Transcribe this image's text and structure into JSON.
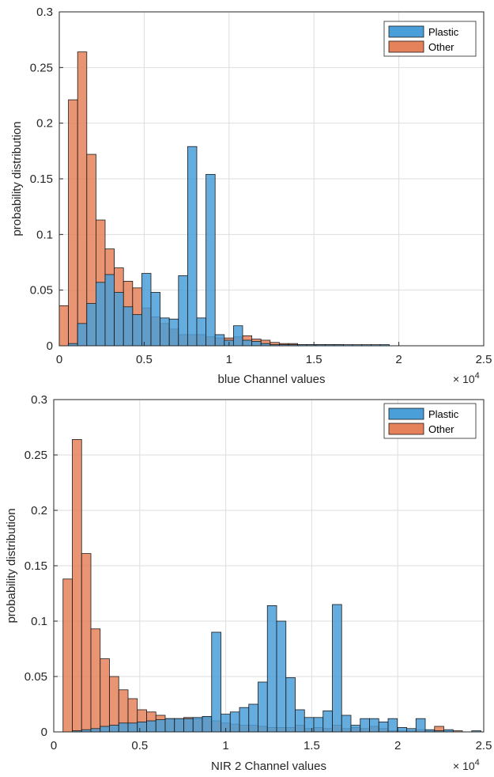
{
  "chart_data": [
    {
      "type": "bar",
      "xlabel": "blue Channel values",
      "ylabel": "probability distribution",
      "xlim": [
        0,
        25000
      ],
      "ylim": [
        0,
        0.3
      ],
      "xticks": [
        0,
        5000,
        10000,
        15000,
        20000,
        25000
      ],
      "xtick_labels": [
        "0",
        "0.5",
        "1",
        "1.5",
        "2",
        "2.5"
      ],
      "yticks": [
        0,
        0.05,
        0.1,
        0.15,
        0.2,
        0.25,
        0.3
      ],
      "ytick_labels": [
        "0",
        "0.05",
        "0.1",
        "0.15",
        "0.2",
        "0.25",
        "0.3"
      ],
      "x_exponent": "× 10^4",
      "grid": true,
      "legend_position": "top-right",
      "bin_width": 540,
      "bin_start": 0,
      "series": [
        {
          "name": "Plastic",
          "color": "#4a9fd8",
          "values": [
            0,
            0.002,
            0.02,
            0.038,
            0.057,
            0.064,
            0.048,
            0.035,
            0.028,
            0.065,
            0.048,
            0.025,
            0.024,
            0.063,
            0.179,
            0.025,
            0.154,
            0.01,
            0.005,
            0.018,
            0.005,
            0.004,
            0.002,
            0.001,
            0.001,
            0.001,
            0.001,
            0.001,
            0.001,
            0.001,
            0.001,
            0.001,
            0.001,
            0.001,
            0.001,
            0.001,
            0,
            0,
            0,
            0,
            0,
            0,
            0,
            0,
            0,
            0
          ]
        },
        {
          "name": "Other",
          "color": "#e5825b",
          "values": [
            0.036,
            0.221,
            0.264,
            0.172,
            0.113,
            0.087,
            0.07,
            0.058,
            0.052,
            0.034,
            0.026,
            0.02,
            0.015,
            0.01,
            0.01,
            0.01,
            0.008,
            0.007,
            0.007,
            0.008,
            0.009,
            0.006,
            0.005,
            0.003,
            0.002,
            0.002,
            0.001,
            0.001,
            0.001,
            0.001,
            0.001,
            0,
            0,
            0,
            0,
            0,
            0,
            0,
            0,
            0,
            0,
            0,
            0,
            0,
            0,
            0
          ]
        }
      ]
    },
    {
      "type": "bar",
      "xlabel": "NIR 2 Channel values",
      "ylabel": "probability distribution",
      "xlim": [
        0,
        25000
      ],
      "ylim": [
        0,
        0.3
      ],
      "xticks": [
        0,
        5000,
        10000,
        15000,
        20000,
        25000
      ],
      "xtick_labels": [
        "0",
        "0.5",
        "1",
        "1.5",
        "2",
        "2.5"
      ],
      "yticks": [
        0,
        0.05,
        0.1,
        0.15,
        0.2,
        0.25,
        0.3
      ],
      "ytick_labels": [
        "0",
        "0.05",
        "0.1",
        "0.15",
        "0.2",
        "0.25",
        "0.3"
      ],
      "x_exponent": "× 10^4",
      "grid": true,
      "legend_position": "top-right",
      "bin_width": 540,
      "bin_start": 540,
      "series": [
        {
          "name": "Plastic",
          "color": "#4a9fd8",
          "values": [
            0.0,
            0.001,
            0.002,
            0.003,
            0.005,
            0.006,
            0.008,
            0.008,
            0.009,
            0.01,
            0.011,
            0.012,
            0.012,
            0.012,
            0.013,
            0.014,
            0.09,
            0.016,
            0.018,
            0.022,
            0.025,
            0.045,
            0.114,
            0.1,
            0.049,
            0.02,
            0.013,
            0.013,
            0.019,
            0.115,
            0.015,
            0.006,
            0.012,
            0.012,
            0.009,
            0.012,
            0.004,
            0.003,
            0.012,
            0.002,
            0.001,
            0.002,
            0.0,
            0.0,
            0.001
          ]
        },
        {
          "name": "Other",
          "color": "#e5825b",
          "values": [
            0.138,
            0.264,
            0.161,
            0.093,
            0.066,
            0.05,
            0.038,
            0.03,
            0.02,
            0.018,
            0.015,
            0.012,
            0.012,
            0.013,
            0.012,
            0.013,
            0.01,
            0.008,
            0.007,
            0.006,
            0.006,
            0.005,
            0.004,
            0.004,
            0.004,
            0.006,
            0.003,
            0.004,
            0.003,
            0.006,
            0.003,
            0.004,
            0.003,
            0.005,
            0.003,
            0.001,
            0.001,
            0.001,
            0.002,
            0.001,
            0.005,
            0.001,
            0.001,
            0.0,
            0.0
          ]
        }
      ]
    }
  ]
}
